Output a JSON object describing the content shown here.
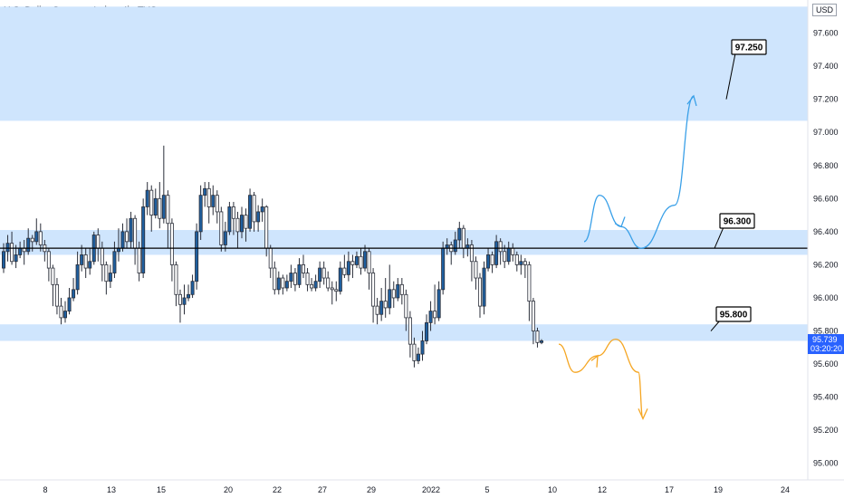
{
  "header": {
    "title": "U.S. Dollar Currency Index, 4h, TVC",
    "currency": "USD"
  },
  "colors": {
    "zone": "#cfe5fd",
    "bull_fill": "#1f5f9f",
    "bear_fill": "#ffffff",
    "wick": "#2a2e39",
    "up_arrow": "#3aa0e8",
    "down_arrow": "#f5a623",
    "price_tag": "#2962ff"
  },
  "chart_data": {
    "type": "candlestick",
    "ylim": [
      94.9,
      97.8
    ],
    "y_ticks": [
      "95.000",
      "95.200",
      "95.400",
      "95.600",
      "95.800",
      "96.000",
      "96.200",
      "96.400",
      "96.600",
      "96.800",
      "97.000",
      "97.200",
      "97.400",
      "97.600"
    ],
    "x_ticks": [
      "8",
      "13",
      "15",
      "20",
      "22",
      "27",
      "29",
      "2022",
      "5",
      "10",
      "12",
      "17",
      "19",
      "24"
    ],
    "zones": [
      {
        "from": 97.07,
        "to": 97.76
      },
      {
        "from": 96.26,
        "to": 96.41
      },
      {
        "from": 95.74,
        "to": 95.84
      }
    ],
    "level_line": 96.3,
    "callouts": [
      "97.250",
      "96.300",
      "95.800"
    ],
    "current_price": {
      "value": "95.739",
      "countdown": "03:20:20"
    },
    "projections": [
      {
        "name": "bullish",
        "path": [
          96.34,
          96.62,
          96.43,
          96.3,
          96.56,
          97.22
        ]
      },
      {
        "name": "bearish",
        "path": [
          95.72,
          95.55,
          95.65,
          95.75,
          95.55,
          95.27
        ]
      }
    ],
    "candles": [
      [
        96.18,
        96.28,
        96.15,
        96.33
      ],
      [
        96.28,
        96.33,
        96.22,
        96.38
      ],
      [
        96.33,
        96.22,
        96.2,
        96.4
      ],
      [
        96.22,
        96.26,
        96.18,
        96.32
      ],
      [
        96.26,
        96.3,
        96.24,
        96.34
      ],
      [
        96.3,
        96.28,
        96.2,
        96.35
      ],
      [
        96.28,
        96.36,
        96.26,
        96.42
      ],
      [
        96.36,
        96.34,
        96.28,
        96.38
      ],
      [
        96.34,
        96.4,
        96.32,
        96.48
      ],
      [
        96.4,
        96.32,
        96.28,
        96.45
      ],
      [
        96.32,
        96.28,
        96.22,
        96.35
      ],
      [
        96.28,
        96.18,
        96.1,
        96.3
      ],
      [
        96.18,
        96.08,
        95.95,
        96.2
      ],
      [
        96.08,
        95.95,
        95.9,
        96.12
      ],
      [
        95.95,
        95.88,
        95.84,
        96.0
      ],
      [
        95.88,
        95.92,
        95.85,
        95.98
      ],
      [
        95.92,
        96.0,
        95.9,
        96.06
      ],
      [
        96.0,
        96.05,
        95.98,
        96.12
      ],
      [
        96.05,
        96.2,
        96.02,
        96.28
      ],
      [
        96.2,
        96.26,
        96.16,
        96.32
      ],
      [
        96.26,
        96.18,
        96.12,
        96.3
      ],
      [
        96.18,
        96.22,
        96.14,
        96.3
      ],
      [
        96.22,
        96.38,
        96.2,
        96.4
      ],
      [
        96.38,
        96.3,
        96.22,
        96.42
      ],
      [
        96.3,
        96.2,
        96.1,
        96.34
      ],
      [
        96.2,
        96.1,
        96.02,
        96.22
      ],
      [
        96.1,
        96.15,
        96.06,
        96.2
      ],
      [
        96.15,
        96.28,
        96.12,
        96.34
      ],
      [
        96.28,
        96.3,
        96.22,
        96.42
      ],
      [
        96.3,
        96.4,
        96.28,
        96.45
      ],
      [
        96.4,
        96.34,
        96.3,
        96.48
      ],
      [
        96.34,
        96.48,
        96.3,
        96.52
      ],
      [
        96.48,
        96.3,
        96.2,
        96.5
      ],
      [
        96.3,
        96.15,
        96.1,
        96.34
      ],
      [
        96.15,
        96.55,
        96.12,
        96.6
      ],
      [
        96.55,
        96.65,
        96.5,
        96.7
      ],
      [
        96.65,
        96.5,
        96.4,
        96.68
      ],
      [
        96.5,
        96.6,
        96.48,
        96.66
      ],
      [
        96.6,
        96.48,
        96.42,
        96.7
      ],
      [
        96.48,
        96.62,
        96.45,
        96.92
      ],
      [
        96.62,
        96.45,
        96.3,
        96.65
      ],
      [
        96.45,
        96.2,
        96.1,
        96.48
      ],
      [
        96.2,
        96.02,
        95.95,
        96.22
      ],
      [
        96.02,
        95.96,
        95.85,
        96.05
      ],
      [
        95.96,
        96.0,
        95.9,
        96.08
      ],
      [
        96.0,
        96.02,
        95.98,
        96.08
      ],
      [
        96.02,
        96.1,
        96.0,
        96.14
      ],
      [
        96.1,
        96.4,
        96.05,
        96.45
      ],
      [
        96.4,
        96.62,
        96.35,
        96.68
      ],
      [
        96.62,
        96.66,
        96.55,
        96.7
      ],
      [
        96.66,
        96.55,
        96.45,
        96.7
      ],
      [
        96.55,
        96.62,
        96.5,
        96.68
      ],
      [
        96.62,
        96.52,
        96.45,
        96.65
      ],
      [
        96.52,
        96.32,
        96.28,
        96.55
      ],
      [
        96.32,
        96.4,
        96.28,
        96.46
      ],
      [
        96.4,
        96.55,
        96.38,
        96.58
      ],
      [
        96.55,
        96.48,
        96.38,
        96.58
      ],
      [
        96.48,
        96.4,
        96.3,
        96.52
      ],
      [
        96.4,
        96.5,
        96.36,
        96.55
      ],
      [
        96.5,
        96.42,
        96.34,
        96.54
      ],
      [
        96.42,
        96.62,
        96.4,
        96.66
      ],
      [
        96.62,
        96.46,
        96.4,
        96.64
      ],
      [
        96.46,
        96.52,
        96.4,
        96.56
      ],
      [
        96.52,
        96.55,
        96.46,
        96.6
      ],
      [
        96.55,
        96.3,
        96.25,
        96.56
      ],
      [
        96.3,
        96.18,
        96.12,
        96.32
      ],
      [
        96.18,
        96.05,
        96.02,
        96.22
      ],
      [
        96.05,
        96.12,
        96.02,
        96.16
      ],
      [
        96.12,
        96.06,
        96.02,
        96.14
      ],
      [
        96.06,
        96.1,
        96.04,
        96.14
      ],
      [
        96.1,
        96.15,
        96.06,
        96.2
      ],
      [
        96.15,
        96.08,
        96.04,
        96.18
      ],
      [
        96.08,
        96.2,
        96.06,
        96.24
      ],
      [
        96.2,
        96.15,
        96.12,
        96.26
      ],
      [
        96.15,
        96.08,
        96.04,
        96.18
      ],
      [
        96.08,
        96.06,
        96.04,
        96.12
      ],
      [
        96.06,
        96.1,
        96.04,
        96.14
      ],
      [
        96.1,
        96.18,
        96.06,
        96.22
      ],
      [
        96.18,
        96.12,
        96.08,
        96.22
      ],
      [
        96.12,
        96.06,
        96.04,
        96.16
      ],
      [
        96.06,
        96.05,
        95.96,
        96.1
      ],
      [
        96.05,
        96.04,
        95.98,
        96.1
      ],
      [
        96.04,
        96.18,
        96.02,
        96.22
      ],
      [
        96.18,
        96.14,
        96.12,
        96.26
      ],
      [
        96.14,
        96.22,
        96.1,
        96.28
      ],
      [
        96.22,
        96.2,
        96.12,
        96.26
      ],
      [
        96.2,
        96.25,
        96.18,
        96.28
      ],
      [
        96.25,
        96.18,
        96.14,
        96.3
      ],
      [
        96.18,
        96.28,
        96.16,
        96.32
      ],
      [
        96.28,
        96.15,
        96.05,
        96.3
      ],
      [
        96.15,
        95.95,
        95.85,
        96.18
      ],
      [
        95.95,
        95.9,
        95.84,
        96.0
      ],
      [
        95.9,
        95.98,
        95.86,
        96.06
      ],
      [
        95.98,
        95.94,
        95.88,
        96.12
      ],
      [
        95.94,
        96.05,
        95.9,
        96.2
      ],
      [
        96.05,
        96.0,
        95.94,
        96.1
      ],
      [
        96.0,
        96.08,
        95.98,
        96.12
      ],
      [
        96.08,
        96.02,
        95.96,
        96.12
      ],
      [
        96.02,
        95.88,
        95.8,
        96.05
      ],
      [
        95.88,
        95.72,
        95.64,
        95.92
      ],
      [
        95.72,
        95.62,
        95.58,
        95.76
      ],
      [
        95.62,
        95.66,
        95.6,
        95.7
      ],
      [
        95.66,
        95.74,
        95.62,
        95.8
      ],
      [
        95.74,
        95.85,
        95.72,
        95.9
      ],
      [
        95.85,
        95.92,
        95.8,
        95.98
      ],
      [
        95.92,
        95.88,
        95.84,
        96.08
      ],
      [
        95.88,
        96.05,
        95.86,
        96.1
      ],
      [
        96.05,
        96.3,
        96.02,
        96.34
      ],
      [
        96.3,
        96.32,
        96.26,
        96.36
      ],
      [
        96.32,
        96.28,
        96.2,
        96.34
      ],
      [
        96.28,
        96.35,
        96.26,
        96.4
      ],
      [
        96.35,
        96.42,
        96.3,
        96.46
      ],
      [
        96.42,
        96.3,
        96.24,
        96.44
      ],
      [
        96.3,
        96.32,
        96.25,
        96.36
      ],
      [
        96.32,
        96.22,
        96.1,
        96.35
      ],
      [
        96.22,
        96.12,
        96.05,
        96.25
      ],
      [
        96.12,
        95.95,
        95.88,
        96.15
      ],
      [
        95.95,
        96.18,
        95.9,
        96.22
      ],
      [
        96.18,
        96.26,
        96.16,
        96.3
      ],
      [
        96.26,
        96.2,
        96.15,
        96.28
      ],
      [
        96.2,
        96.34,
        96.18,
        96.38
      ],
      [
        96.34,
        96.28,
        96.2,
        96.36
      ],
      [
        96.28,
        96.22,
        96.18,
        96.32
      ],
      [
        96.22,
        96.3,
        96.2,
        96.34
      ],
      [
        96.3,
        96.26,
        96.22,
        96.33
      ],
      [
        96.26,
        96.2,
        96.16,
        96.28
      ],
      [
        96.2,
        96.22,
        96.14,
        96.26
      ],
      [
        96.22,
        96.2,
        96.12,
        96.24
      ],
      [
        96.2,
        95.98,
        95.86,
        96.22
      ],
      [
        95.98,
        95.8,
        95.72,
        96.0
      ],
      [
        95.8,
        95.73,
        95.7,
        95.82
      ],
      [
        95.73,
        95.74,
        95.72,
        95.75
      ]
    ]
  }
}
